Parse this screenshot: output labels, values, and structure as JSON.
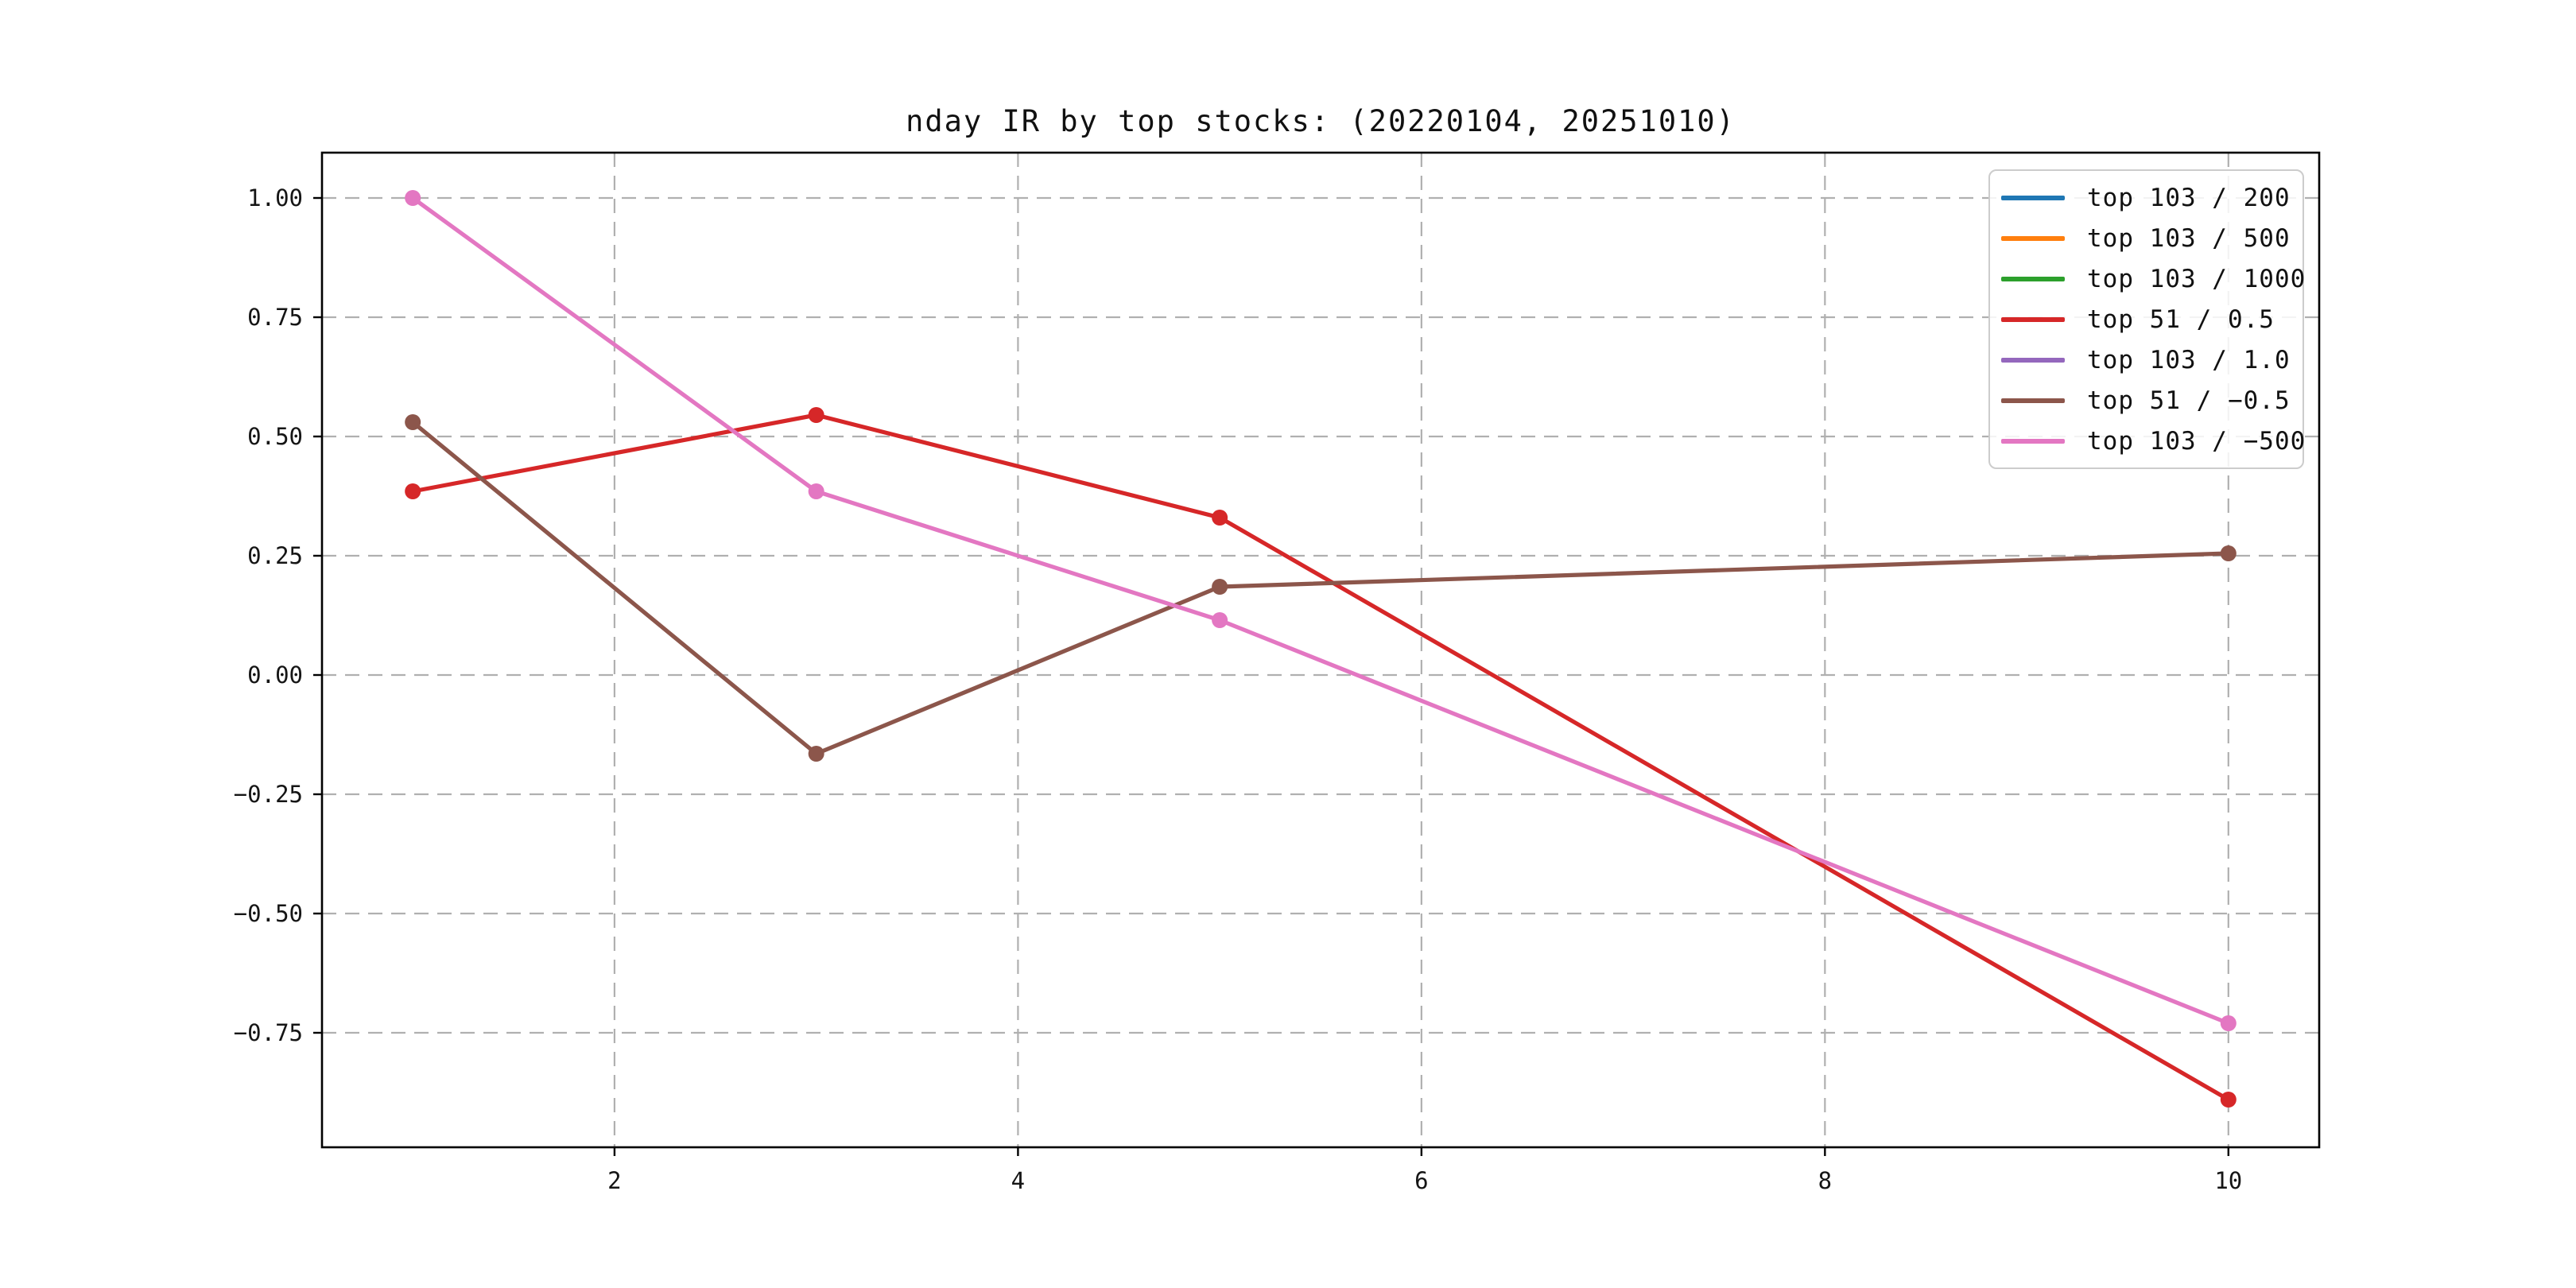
{
  "chart_data": {
    "type": "line",
    "title": "nday IR by top stocks: (20220104, 20251010)",
    "xlabel": "",
    "ylabel": "",
    "x": [
      1,
      3,
      5,
      10
    ],
    "xticks": [
      2,
      4,
      6,
      8,
      10
    ],
    "xtick_labels": [
      "2",
      "4",
      "6",
      "8",
      "10"
    ],
    "yticks": [
      1.0,
      0.75,
      0.5,
      0.25,
      0.0,
      -0.25,
      -0.5,
      -0.75
    ],
    "ytick_labels": [
      "1.00",
      "0.75",
      "0.50",
      "0.25",
      "0.00",
      "−0.25",
      "−0.50",
      "−0.75"
    ],
    "xlim": [
      0.55,
      10.45
    ],
    "ylim": [
      -0.99,
      1.095
    ],
    "grid": true,
    "grid_style": "dashed",
    "legend_position": "upper right",
    "marker": "circle",
    "series": [
      {
        "name": "top 103 / 200",
        "color": "#1f77b4",
        "values": null
      },
      {
        "name": "top 103 / 500",
        "color": "#ff7f0e",
        "values": null
      },
      {
        "name": "top 103 / 1000",
        "color": "#2ca02c",
        "values": null
      },
      {
        "name": "top 51 / 0.5",
        "color": "#d62728",
        "values": [
          0.385,
          0.545,
          0.33,
          -0.89
        ]
      },
      {
        "name": "top 103 / 1.0",
        "color": "#9467bd",
        "values": null
      },
      {
        "name": "top 51 / −0.5",
        "color": "#8c564b",
        "values": [
          0.53,
          -0.165,
          0.185,
          0.255
        ]
      },
      {
        "name": "top 103 / −500",
        "color": "#e377c2",
        "values": [
          1.0,
          0.385,
          0.115,
          -0.73
        ]
      }
    ]
  }
}
